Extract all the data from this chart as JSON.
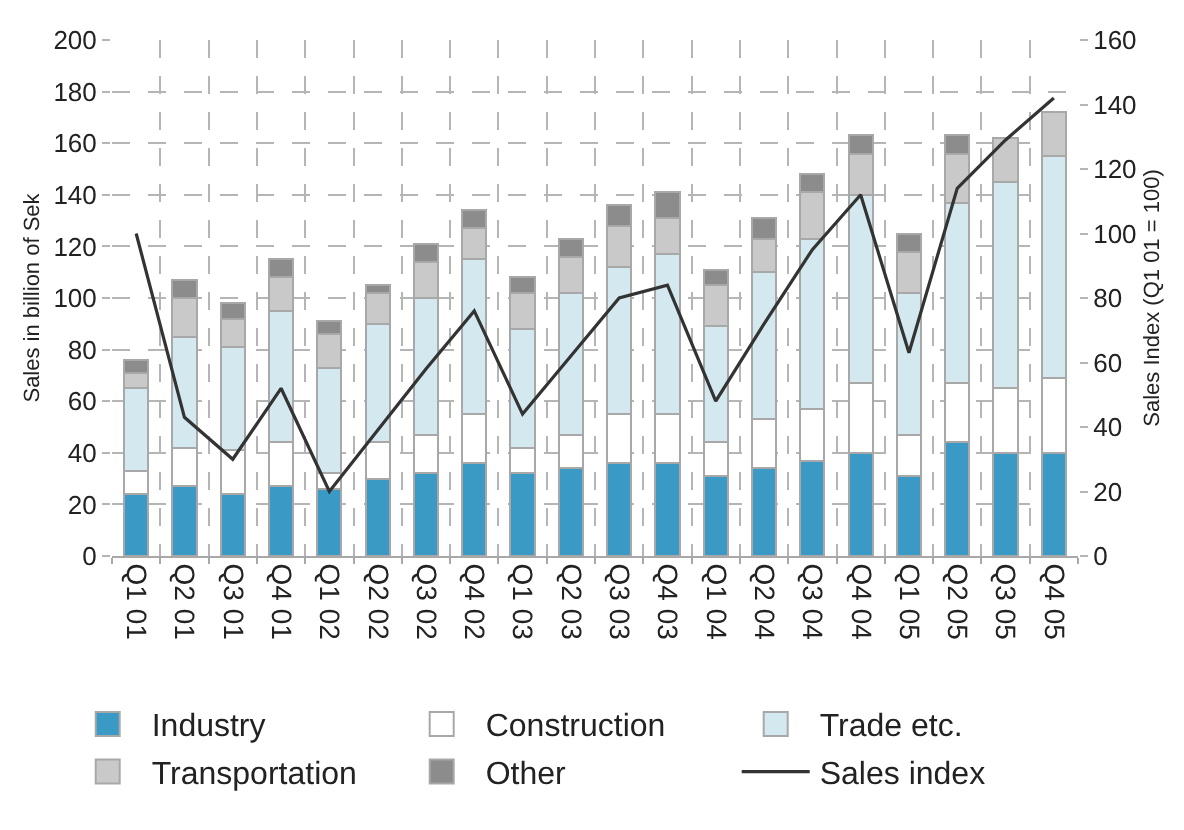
{
  "chart_data": {
    "type": "bar",
    "stacked": true,
    "categories": [
      "Q1 01",
      "Q2 01",
      "Q3 01",
      "Q4 01",
      "Q1 02",
      "Q2 02",
      "Q3 02",
      "Q4 02",
      "Q1 03",
      "Q2 03",
      "Q3 03",
      "Q4 03",
      "Q1 04",
      "Q2 04",
      "Q3 04",
      "Q4 04",
      "Q1 05",
      "Q2 05",
      "Q3 05",
      "Q4 05"
    ],
    "series": [
      {
        "name": "Industry",
        "color": "#3b9ac5",
        "values": [
          24,
          27,
          24,
          27,
          26,
          30,
          32,
          36,
          32,
          34,
          36,
          36,
          31,
          34,
          37,
          40,
          31,
          44,
          40,
          40
        ]
      },
      {
        "name": "Construction",
        "color": "#ffffff",
        "values": [
          9,
          15,
          17,
          17,
          6,
          14,
          15,
          19,
          10,
          13,
          19,
          19,
          13,
          19,
          20,
          27,
          16,
          23,
          25,
          29
        ]
      },
      {
        "name": "Trade etc.",
        "color": "#d4e8ef",
        "values": [
          32,
          43,
          40,
          51,
          41,
          46,
          53,
          60,
          46,
          55,
          57,
          62,
          45,
          57,
          66,
          73,
          55,
          70,
          80,
          86
        ]
      },
      {
        "name": "Transportation",
        "color": "#c9c9c9",
        "values": [
          6,
          15,
          11,
          13,
          13,
          12,
          14,
          12,
          14,
          14,
          16,
          14,
          16,
          13,
          18,
          16,
          16,
          19,
          17,
          17
        ]
      },
      {
        "name": "Other",
        "color": "#8c8c8c",
        "values": [
          5,
          7,
          6,
          7,
          5,
          3,
          7,
          7,
          6,
          7,
          8,
          10,
          6,
          8,
          7,
          7,
          7,
          7,
          null,
          null
        ]
      },
      {
        "name": "Sales index",
        "type": "line",
        "axis": "y2",
        "color": "#333333",
        "values": [
          100,
          43,
          30,
          52,
          20,
          39,
          58,
          76,
          44,
          62,
          80,
          84,
          48,
          72,
          95,
          112,
          63,
          114,
          129,
          142
        ]
      }
    ],
    "ylabel": "Sales in billion of Sek",
    "y2label": "Sales Index (Q1 01 = 100)",
    "ylim": [
      0,
      200
    ],
    "yticks": [
      0,
      20,
      40,
      60,
      80,
      100,
      120,
      140,
      160,
      180,
      200
    ],
    "y2lim": [
      0,
      160
    ],
    "y2ticks": [
      0,
      20,
      40,
      60,
      80,
      100,
      120,
      140,
      160
    ],
    "grid": true,
    "legend": "bottom"
  }
}
